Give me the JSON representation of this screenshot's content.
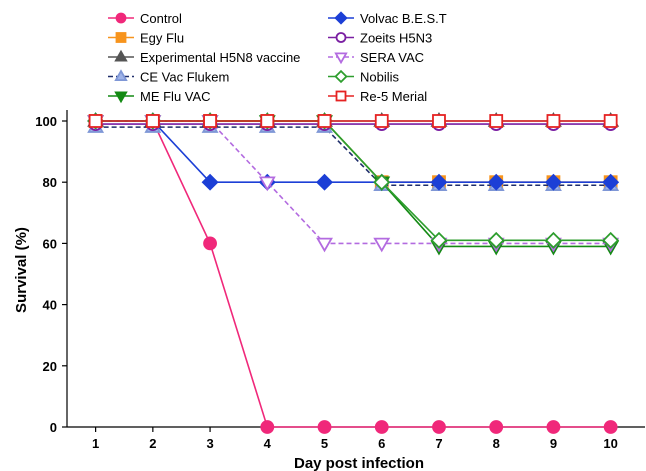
{
  "chart_data": {
    "type": "line",
    "title": "",
    "xlabel": "Day post infection",
    "ylabel": "Survival (%)",
    "x": [
      1,
      2,
      3,
      4,
      5,
      6,
      7,
      8,
      9,
      10
    ],
    "xlim": [
      0.5,
      10.6
    ],
    "ylim": [
      0,
      100
    ],
    "yticks": [
      0,
      20,
      40,
      60,
      80,
      100
    ],
    "grid": false,
    "legend_position": "top",
    "series": [
      {
        "name": "Control",
        "color": "#f0287a",
        "marker": "circle",
        "dash": "solid",
        "values": [
          100,
          100,
          60,
          0,
          0,
          0,
          0,
          0,
          0,
          0
        ]
      },
      {
        "name": "Egy Flu",
        "color": "#f7941d",
        "marker": "square",
        "dash": "solid",
        "values": [
          100,
          100,
          100,
          100,
          100,
          80,
          80,
          80,
          80,
          80
        ]
      },
      {
        "name": "Experimental H5N8 vaccine",
        "color": "#555555",
        "marker": "triangle-up",
        "dash": "solid",
        "values": [
          100,
          100,
          100,
          100,
          100,
          100,
          100,
          100,
          100,
          100
        ]
      },
      {
        "name": "CE Vac Flukem",
        "color": "#1f2e6b",
        "marker": "triangle-up-light",
        "dash": "dashed",
        "values": [
          98,
          98,
          98,
          98,
          98,
          79,
          79,
          79,
          79,
          79
        ]
      },
      {
        "name": "ME Flu VAC",
        "color": "#138a13",
        "marker": "triangle-down",
        "dash": "solid",
        "values": [
          100,
          100,
          100,
          100,
          100,
          80,
          59,
          59,
          59,
          59
        ]
      },
      {
        "name": "Volvac B.E.S.T",
        "color": "#1c3fd6",
        "marker": "diamond",
        "dash": "solid",
        "values": [
          100,
          100,
          80,
          80,
          80,
          80,
          80,
          80,
          80,
          80
        ]
      },
      {
        "name": "Zoeits H5N3",
        "color": "#7a1fa2",
        "marker": "circle-open",
        "dash": "solid",
        "values": [
          99,
          99,
          99,
          99,
          99,
          99,
          99,
          99,
          99,
          99
        ]
      },
      {
        "name": "SERA VAC",
        "color": "#b36be0",
        "marker": "triangle-down-open",
        "dash": "dashed",
        "values": [
          100,
          100,
          100,
          80,
          60,
          60,
          60,
          60,
          60,
          60
        ]
      },
      {
        "name": "Nobilis",
        "color": "#2e9e2e",
        "marker": "diamond-open",
        "dash": "solid",
        "values": [
          100,
          100,
          100,
          100,
          100,
          80,
          61,
          61,
          61,
          61
        ]
      },
      {
        "name": "Re-5 Merial",
        "color": "#e52222",
        "marker": "square-open",
        "dash": "solid",
        "values": [
          100,
          100,
          100,
          100,
          100,
          100,
          100,
          100,
          100,
          100
        ]
      }
    ]
  }
}
